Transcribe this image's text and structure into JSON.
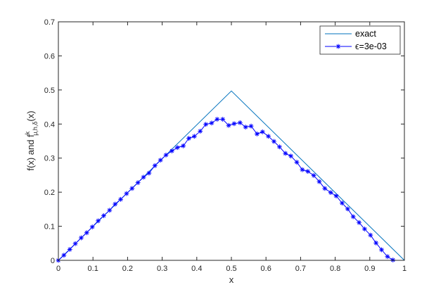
{
  "chart_data": {
    "type": "line",
    "xlabel": "x",
    "ylabel": {
      "main": "f(x) and f",
      "superscript": "k",
      "subscript": "μ,h,δ",
      "tail": "(x)"
    },
    "xlim": [
      0,
      1
    ],
    "ylim": [
      0,
      0.7
    ],
    "xticks": [
      "0",
      "0.1",
      "0.2",
      "0.3",
      "0.4",
      "0.5",
      "0.6",
      "0.7",
      "0.8",
      "0.9",
      "1"
    ],
    "yticks": [
      "0",
      "0.1",
      "0.2",
      "0.3",
      "0.4",
      "0.5",
      "0.6",
      "0.7"
    ],
    "grid": false,
    "legend_position": "top-right",
    "series": [
      {
        "name": "exact",
        "color": "#0072BD",
        "marker": "none",
        "x": [
          0,
          0.5,
          1
        ],
        "y": [
          0,
          0.497,
          0
        ]
      },
      {
        "name": "ϵ=3e-03",
        "color": "#0000FF",
        "marker": "asterisk",
        "x": [
          0,
          0.016,
          0.033,
          0.049,
          0.066,
          0.082,
          0.098,
          0.115,
          0.131,
          0.148,
          0.164,
          0.18,
          0.197,
          0.213,
          0.23,
          0.246,
          0.262,
          0.279,
          0.295,
          0.311,
          0.328,
          0.344,
          0.361,
          0.377,
          0.393,
          0.41,
          0.426,
          0.443,
          0.459,
          0.475,
          0.492,
          0.508,
          0.525,
          0.541,
          0.557,
          0.574,
          0.59,
          0.607,
          0.623,
          0.639,
          0.656,
          0.672,
          0.689,
          0.705,
          0.721,
          0.738,
          0.754,
          0.77,
          0.787,
          0.803,
          0.82,
          0.836,
          0.852,
          0.869,
          0.885,
          0.902,
          0.918,
          0.934,
          0.951,
          0.967
        ],
        "y": [
          0,
          0.015,
          0.032,
          0.049,
          0.066,
          0.081,
          0.098,
          0.116,
          0.131,
          0.147,
          0.165,
          0.179,
          0.196,
          0.211,
          0.228,
          0.244,
          0.256,
          0.278,
          0.294,
          0.309,
          0.321,
          0.331,
          0.336,
          0.358,
          0.364,
          0.379,
          0.399,
          0.403,
          0.414,
          0.414,
          0.396,
          0.401,
          0.404,
          0.391,
          0.394,
          0.371,
          0.377,
          0.364,
          0.349,
          0.333,
          0.314,
          0.306,
          0.288,
          0.266,
          0.261,
          0.249,
          0.231,
          0.211,
          0.199,
          0.189,
          0.168,
          0.151,
          0.128,
          0.111,
          0.092,
          0.074,
          0.051,
          0.031,
          0.011,
          0.001
        ]
      }
    ]
  }
}
